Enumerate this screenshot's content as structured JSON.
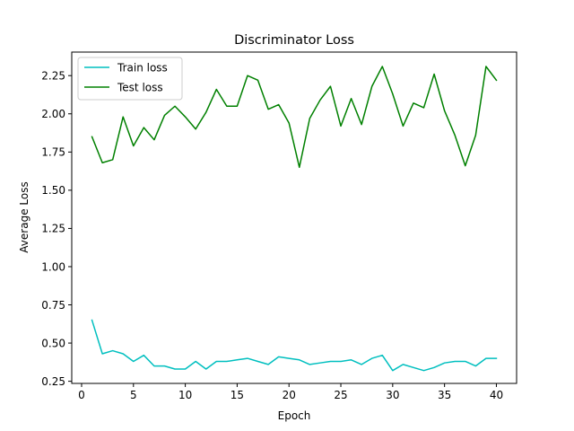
{
  "chart_data": {
    "type": "line",
    "title": "Discriminator Loss",
    "xlabel": "Epoch",
    "ylabel": "Average Loss",
    "xlim": [
      -0.95,
      41.95
    ],
    "ylim": [
      0.236,
      2.404
    ],
    "x_ticks": [
      0,
      5,
      10,
      15,
      20,
      25,
      30,
      35,
      40
    ],
    "x_tick_labels": [
      "0",
      "5",
      "10",
      "15",
      "20",
      "25",
      "30",
      "35",
      "40"
    ],
    "y_ticks": [
      0.25,
      0.5,
      0.75,
      1.0,
      1.25,
      1.5,
      1.75,
      2.0,
      2.25
    ],
    "y_tick_labels": [
      "0.25",
      "0.50",
      "0.75",
      "1.00",
      "1.25",
      "1.50",
      "1.75",
      "2.00",
      "2.25"
    ],
    "grid": false,
    "legend_position": "top-left",
    "x": [
      1,
      2,
      3,
      4,
      5,
      6,
      7,
      8,
      9,
      10,
      11,
      12,
      13,
      14,
      15,
      16,
      17,
      18,
      19,
      20,
      21,
      22,
      23,
      24,
      25,
      26,
      27,
      28,
      29,
      30,
      31,
      32,
      33,
      34,
      35,
      36,
      37,
      38,
      39,
      40
    ],
    "series": [
      {
        "name": "Train loss",
        "color": "#00bfbf",
        "values": [
          0.65,
          0.43,
          0.45,
          0.43,
          0.38,
          0.42,
          0.35,
          0.35,
          0.33,
          0.33,
          0.38,
          0.33,
          0.38,
          0.38,
          0.39,
          0.4,
          0.38,
          0.36,
          0.41,
          0.4,
          0.39,
          0.36,
          0.37,
          0.38,
          0.38,
          0.39,
          0.36,
          0.4,
          0.42,
          0.32,
          0.36,
          0.34,
          0.32,
          0.34,
          0.37,
          0.38,
          0.38,
          0.35,
          0.4,
          0.4
        ]
      },
      {
        "name": "Test loss",
        "color": "#008000",
        "values": [
          1.85,
          1.68,
          1.7,
          1.98,
          1.79,
          1.91,
          1.83,
          1.99,
          2.05,
          1.98,
          1.9,
          2.01,
          2.16,
          2.05,
          2.05,
          2.25,
          2.22,
          2.03,
          2.06,
          1.94,
          1.65,
          1.97,
          2.09,
          2.18,
          1.92,
          2.1,
          1.93,
          2.18,
          2.31,
          2.13,
          1.92,
          2.07,
          2.04,
          2.26,
          2.02,
          1.86,
          1.66,
          1.86,
          2.31,
          2.22
        ]
      }
    ]
  }
}
